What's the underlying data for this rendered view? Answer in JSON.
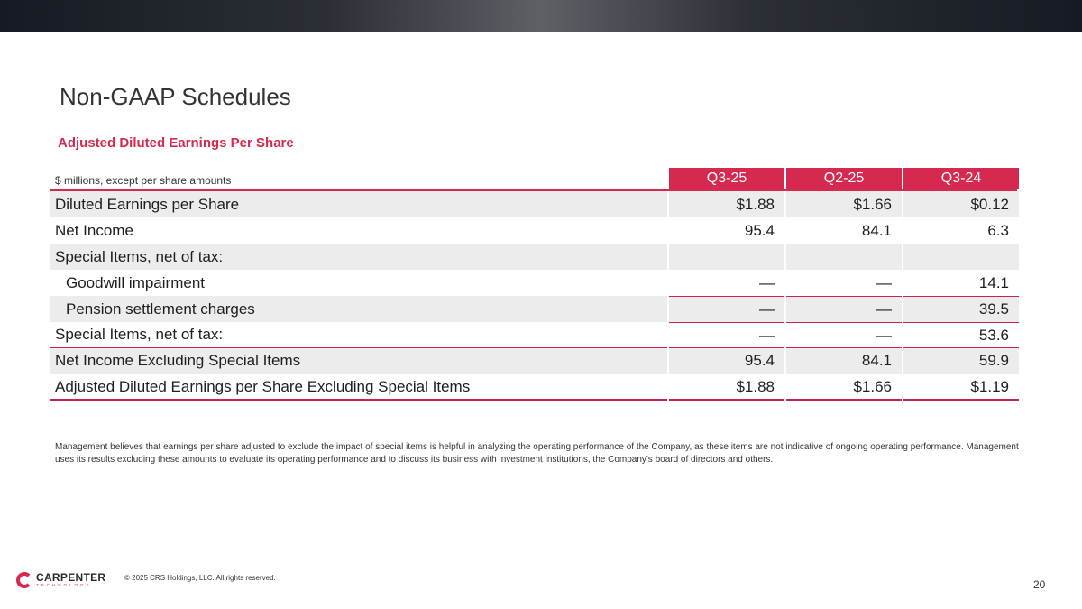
{
  "header": {
    "title": "Non-GAAP Schedules"
  },
  "subtitle": "Adjusted Diluted Earnings Per Share",
  "table": {
    "units_note": "$ millions, except per share amounts",
    "columns": [
      "Q3-25",
      "Q2-25",
      "Q3-24"
    ],
    "rows": [
      {
        "label": "Diluted Earnings per Share",
        "values": [
          "$1.88",
          "$1.66",
          "$0.12"
        ]
      },
      {
        "label": "Net Income",
        "values": [
          "95.4",
          "84.1",
          "6.3"
        ]
      },
      {
        "label": "Special Items, net of tax:",
        "values": [
          "",
          "",
          ""
        ]
      },
      {
        "label": "Goodwill impairment",
        "values": [
          "—",
          "—",
          "14.1"
        ]
      },
      {
        "label": "Pension settlement charges",
        "values": [
          "—",
          "—",
          "39.5"
        ]
      },
      {
        "label": "Special Items, net of tax:",
        "values": [
          "—",
          "—",
          "53.6"
        ]
      },
      {
        "label": "Net Income Excluding Special Items",
        "values": [
          "95.4",
          "84.1",
          "59.9"
        ]
      },
      {
        "label": "Adjusted Diluted Earnings per Share Excluding Special Items",
        "values": [
          "$1.88",
          "$1.66",
          "$1.19"
        ]
      }
    ]
  },
  "note": "Management believes that earnings per share adjusted to exclude the impact of special items is helpful in analyzing the operating performance of the Company, as these items are not indicative of ongoing operating performance. Management uses its results excluding these amounts to evaluate its operating performance and to discuss its business with investment institutions, the Company's board of directors and others.",
  "footer": {
    "logo_name": "CARPENTER",
    "logo_sub": "TECHNOLOGY",
    "copyright": "© 2025 CRS Holdings, LLC. All rights reserved.",
    "page_number": "20"
  },
  "colors": {
    "accent": "#d6294f",
    "shade": "#ececec",
    "topbar": "#2b2e35"
  }
}
